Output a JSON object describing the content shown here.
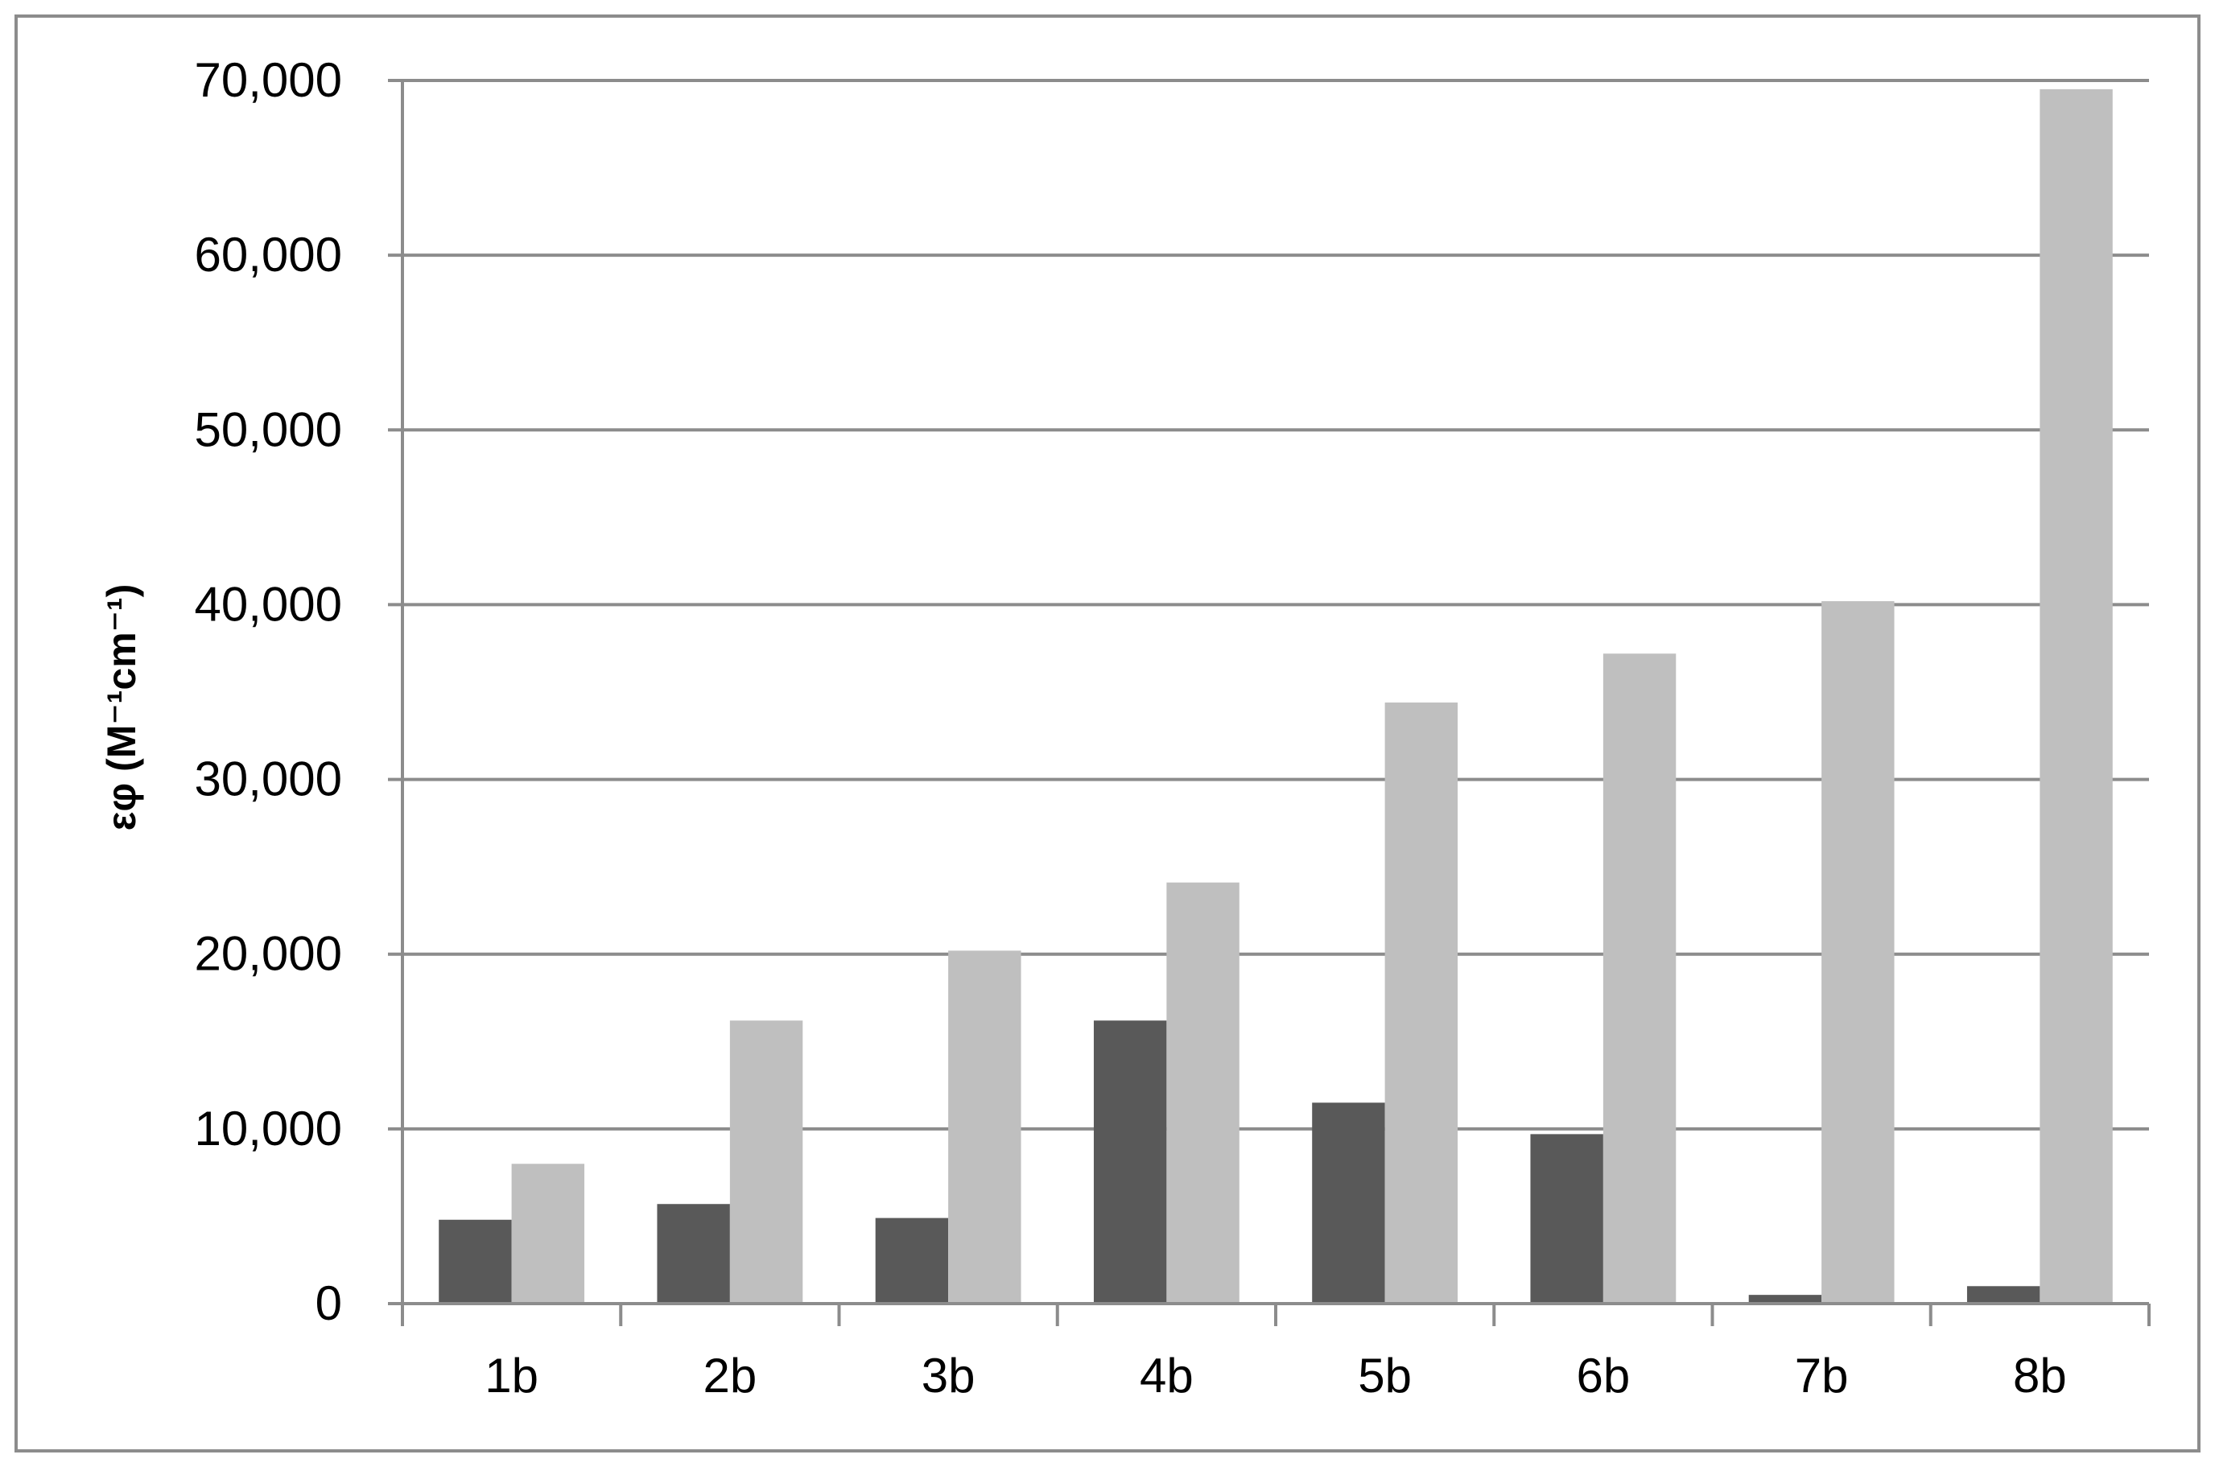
{
  "chart_data": {
    "type": "bar",
    "categories": [
      "1b",
      "2b",
      "3b",
      "4b",
      "5b",
      "6b",
      "7b",
      "8b"
    ],
    "series": [
      {
        "color": "#595959",
        "values": [
          4800,
          5700,
          4900,
          16200,
          11500,
          9700,
          500,
          1000
        ]
      },
      {
        "color": "#bfbfbf",
        "values": [
          8000,
          16200,
          20200,
          24100,
          34400,
          37200,
          40200,
          69500
        ]
      }
    ],
    "title": "",
    "xlabel": "",
    "ylabel": "εφ (M⁻¹cm⁻¹)",
    "ylim": [
      0,
      70000
    ],
    "yticks": [
      0,
      10000,
      20000,
      30000,
      40000,
      50000,
      60000,
      70000
    ],
    "ytick_labels": [
      "0",
      "10,000",
      "20,000",
      "30,000",
      "40,000",
      "50,000",
      "60,000",
      "70,000"
    ],
    "grid": true,
    "legend": "none"
  },
  "colors": {
    "gridline": "#8c8c8c",
    "axis": "#8c8c8c",
    "frame_border": "#8c8c8c",
    "background": "#ffffff"
  }
}
